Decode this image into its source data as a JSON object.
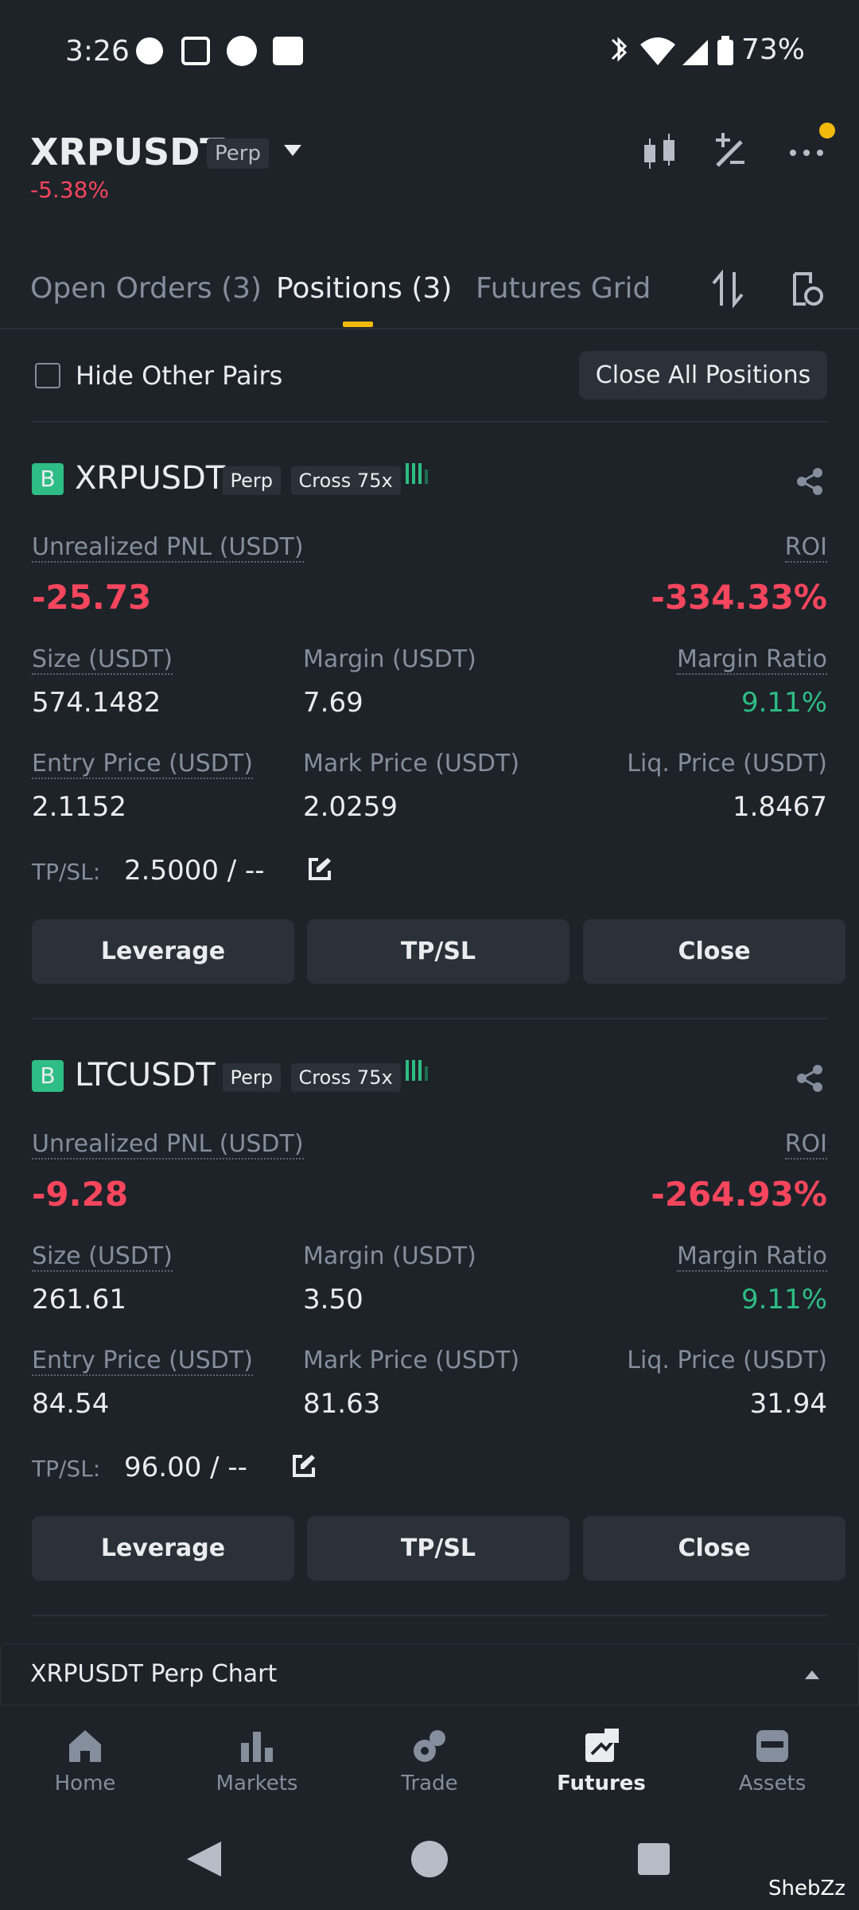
{
  "status": {
    "time": "3:26",
    "battery": "73%"
  },
  "header": {
    "symbol": "XRPUSDT",
    "badge": "Perp",
    "change": "-5.38%"
  },
  "tabs": [
    "Open Orders (3)",
    "Positions (3)",
    "Futures Grid"
  ],
  "filter": {
    "label": "Hide Other Pairs",
    "button": "Close All Positions"
  },
  "positions": [
    {
      "side": "B",
      "symbol": "XRPUSDT",
      "type": "Perp",
      "mode": "Cross 75x",
      "pnl_label": "Unrealized PNL (USDT)",
      "pnl": "-25.73",
      "roi_label": "ROI",
      "roi": "-334.33%",
      "fields": [
        {
          "label": "Size (USDT)",
          "value": "574.1482"
        },
        {
          "label": "Margin (USDT)",
          "value": "7.69"
        },
        {
          "label": "Margin Ratio",
          "value": "9.11%"
        },
        {
          "label": "Entry Price (USDT)",
          "value": "2.1152"
        },
        {
          "label": "Mark Price (USDT)",
          "value": "2.0259"
        },
        {
          "label": "Liq. Price (USDT)",
          "value": "1.8467"
        }
      ],
      "tpsl_label": "TP/SL:",
      "tpsl": "2.5000 / --",
      "buttons": [
        "Leverage",
        "TP/SL",
        "Close"
      ]
    },
    {
      "side": "B",
      "symbol": "LTCUSDT",
      "type": "Perp",
      "mode": "Cross 75x",
      "pnl_label": "Unrealized PNL (USDT)",
      "pnl": "-9.28",
      "roi_label": "ROI",
      "roi": "-264.93%",
      "fields": [
        {
          "label": "Size (USDT)",
          "value": "261.61"
        },
        {
          "label": "Margin (USDT)",
          "value": "3.50"
        },
        {
          "label": "Margin Ratio",
          "value": "9.11%"
        },
        {
          "label": "Entry Price (USDT)",
          "value": "84.54"
        },
        {
          "label": "Mark Price (USDT)",
          "value": "81.63"
        },
        {
          "label": "Liq. Price (USDT)",
          "value": "31.94"
        }
      ],
      "tpsl_label": "TP/SL:",
      "tpsl": "96.00 / --",
      "buttons": [
        "Leverage",
        "TP/SL",
        "Close"
      ]
    }
  ],
  "chart_bar": {
    "label": "XRPUSDT Perp Chart"
  },
  "nav": [
    "Home",
    "Markets",
    "Trade",
    "Futures",
    "Assets"
  ],
  "watermark": "ShebZz"
}
